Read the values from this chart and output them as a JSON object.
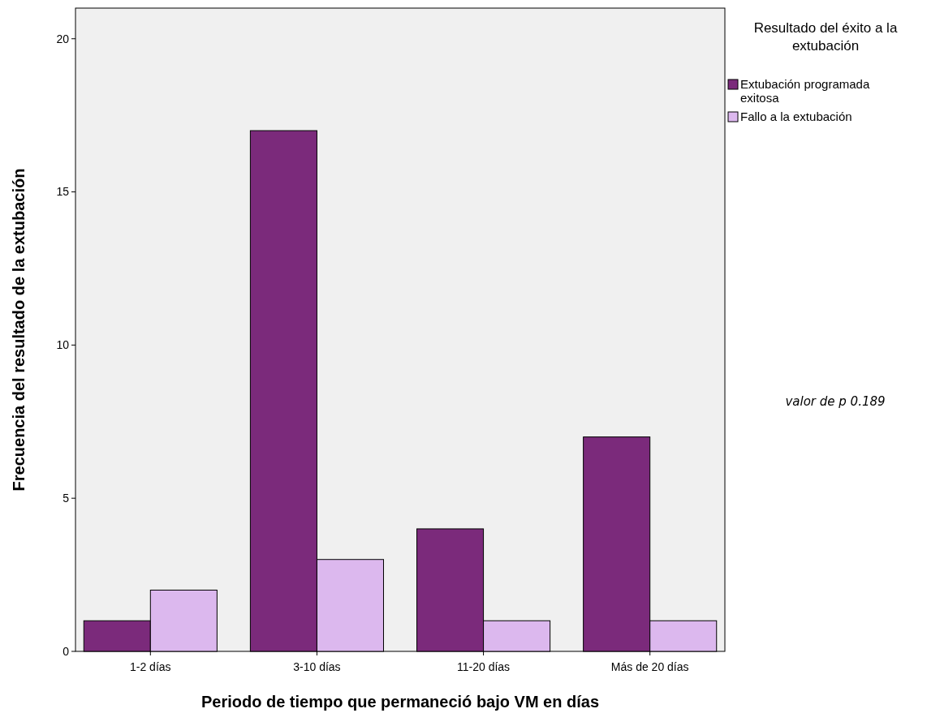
{
  "chart_data": {
    "type": "bar",
    "xlabel": "Periodo de tiempo que permaneció bajo VM en días",
    "ylabel": "Frecuencia del resultado de la extubación",
    "legend_title": "Resultado del éxito a la extubación",
    "categories": [
      "1-2 días",
      "3-10 días",
      "11-20 días",
      "Más de 20 días"
    ],
    "series": [
      {
        "name": "Extubación programada exitosa",
        "color": "#7b2a7b",
        "values": [
          1,
          17,
          4,
          7
        ]
      },
      {
        "name": "Fallo a la extubación",
        "color": "#dcb8ee",
        "values": [
          2,
          3,
          1,
          1
        ]
      }
    ],
    "ylim": [
      0,
      21
    ],
    "yticks": [
      0,
      5,
      10,
      15,
      20
    ],
    "grid": false,
    "legend": "top right",
    "annotations": [
      "valor de p 0.189"
    ]
  }
}
